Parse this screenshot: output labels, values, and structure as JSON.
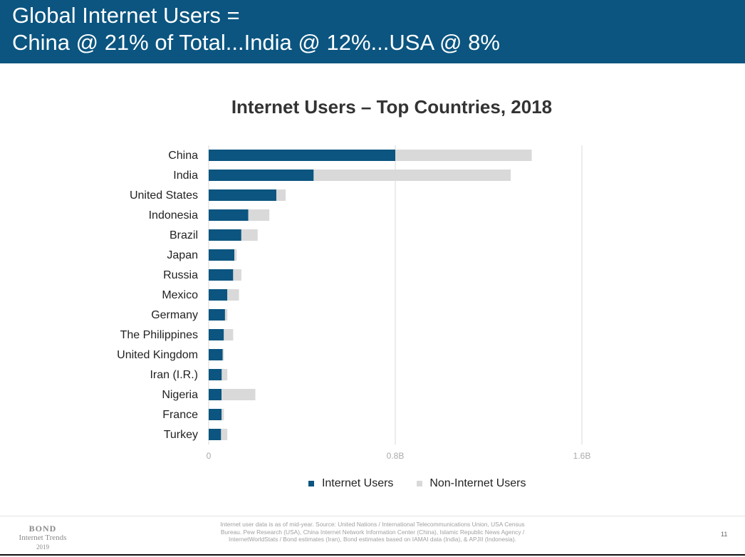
{
  "header": {
    "title_line1": "Global Internet Users =",
    "title_line2": "China @ 21% of Total...India @ 12%...USA @ 8%"
  },
  "chart_data": {
    "type": "bar",
    "orientation": "horizontal",
    "stacked": true,
    "title": "Internet Users – Top Countries, 2018",
    "categories": [
      "China",
      "India",
      "United States",
      "Indonesia",
      "Brazil",
      "Japan",
      "Russia",
      "Mexico",
      "Germany",
      "The Philippines",
      "United Kingdom",
      "Iran (I.R.)",
      "Nigeria",
      "France",
      "Turkey"
    ],
    "series": [
      {
        "name": "Internet Users",
        "values": [
          0.8,
          0.45,
          0.29,
          0.17,
          0.14,
          0.11,
          0.105,
          0.08,
          0.07,
          0.065,
          0.06,
          0.056,
          0.055,
          0.055,
          0.053
        ]
      },
      {
        "name": "Non-Internet Users",
        "values": [
          0.585,
          0.845,
          0.04,
          0.09,
          0.07,
          0.01,
          0.035,
          0.05,
          0.01,
          0.04,
          0.005,
          0.024,
          0.145,
          0.01,
          0.027
        ]
      }
    ],
    "xlim": [
      0,
      1.6
    ],
    "xticks": [
      0,
      0.8,
      1.6
    ],
    "xtick_labels": [
      "0",
      "0.8B",
      "1.6B"
    ],
    "grid": true,
    "legend_position": "bottom",
    "colors": {
      "internet_users": "#0b5580",
      "non_internet_users": "#d9d9d9",
      "grid": "#d9d9d9"
    }
  },
  "footer": {
    "brand_line1": "BOND",
    "brand_line2": "Internet Trends",
    "brand_line3": "2019",
    "source_line1": "Internet user data is as of mid-year.  Source: United Nations / International Telecommunications Union, USA Census",
    "source_line2": "Bureau. Pew Research (USA), China Internet Network Information Center (China), Islamic Republic News Agency /",
    "source_line3": "InternetWorldStats / Bond estimates (Iran), Bond estimates based on IAMAI data (India), & APJII (Indonesia).",
    "page_number": "11"
  }
}
